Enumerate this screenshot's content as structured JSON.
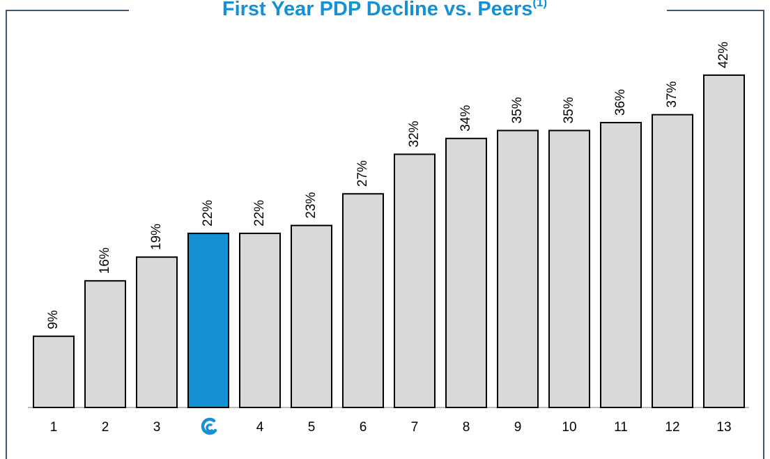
{
  "chart_data": {
    "type": "bar",
    "title": "First Year PDP Decline vs. Peers",
    "title_note": "(1)",
    "categories": [
      "1",
      "2",
      "3",
      null,
      "4",
      "5",
      "6",
      "7",
      "8",
      "9",
      "10",
      "11",
      "12",
      "13"
    ],
    "values": [
      9,
      16,
      19,
      22,
      22,
      23,
      27,
      32,
      34,
      35,
      35,
      36,
      37,
      42
    ],
    "value_labels": [
      "9%",
      "16%",
      "19%",
      "22%",
      "22%",
      "23%",
      "27%",
      "32%",
      "34%",
      "35%",
      "35%",
      "36%",
      "37%",
      "42%"
    ],
    "colors": [
      "#d9d9d9",
      "#d9d9d9",
      "#d9d9d9",
      "#1491d5",
      "#d9d9d9",
      "#d9d9d9",
      "#d9d9d9",
      "#d9d9d9",
      "#d9d9d9",
      "#d9d9d9",
      "#d9d9d9",
      "#d9d9d9",
      "#d9d9d9",
      "#d9d9d9"
    ],
    "title_color": "#1491d5"
  }
}
